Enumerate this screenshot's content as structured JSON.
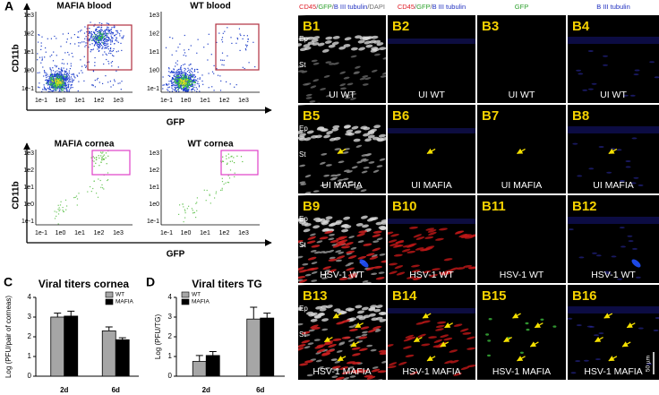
{
  "figure": {
    "panel_a": "A",
    "panel_c": "C",
    "panel_d": "D",
    "flow": {
      "x_label": "GFP",
      "y_label": "CD11b",
      "ticks": [
        "1e-1",
        "1e0",
        "1e1",
        "1e2",
        "1e3"
      ],
      "plots": [
        "MAFIA blood",
        "WT blood",
        "MAFIA cornea",
        "WT cornea"
      ]
    },
    "micro": {
      "headers": [
        [
          {
            "text": "CD45",
            "color": "#e0202a"
          },
          {
            "text": "/",
            "color": "#606060"
          },
          {
            "text": "GFP",
            "color": "#2ca02c"
          },
          {
            "text": "/",
            "color": "#606060"
          },
          {
            "text": "B III tubulin",
            "color": "#2030c0"
          },
          {
            "text": "/",
            "color": "#606060"
          },
          {
            "text": "DAPI",
            "color": "#707070"
          }
        ],
        [
          {
            "text": "CD45",
            "color": "#e0202a"
          },
          {
            "text": "/",
            "color": "#606060"
          },
          {
            "text": "GFP",
            "color": "#2ca02c"
          },
          {
            "text": "/",
            "color": "#606060"
          },
          {
            "text": "B III tubulin",
            "color": "#2030c0"
          }
        ],
        [
          {
            "text": "GFP",
            "color": "#2ca02c"
          }
        ],
        [
          {
            "text": "B III tubulin",
            "color": "#2030c0"
          }
        ]
      ],
      "ep": "Ep",
      "st": "St",
      "panels": [
        {
          "label": "B1",
          "caption": "UI WT"
        },
        {
          "label": "B2",
          "caption": "UI WT"
        },
        {
          "label": "B3",
          "caption": "UI WT"
        },
        {
          "label": "B4",
          "caption": "UI WT"
        },
        {
          "label": "B5",
          "caption": "UI MAFIA"
        },
        {
          "label": "B6",
          "caption": "UI MAFIA"
        },
        {
          "label": "B7",
          "caption": "UI MAFIA"
        },
        {
          "label": "B8",
          "caption": "UI MAFIA"
        },
        {
          "label": "B9",
          "caption": "HSV-1 WT"
        },
        {
          "label": "B10",
          "caption": "HSV-1 WT"
        },
        {
          "label": "B11",
          "caption": "HSV-1 WT"
        },
        {
          "label": "B12",
          "caption": "HSV-1 WT"
        },
        {
          "label": "B13",
          "caption": "HSV-1 MAFIA"
        },
        {
          "label": "B14",
          "caption": "HSV-1 MAFIA"
        },
        {
          "label": "B15",
          "caption": "HSV-1 MAFIA"
        },
        {
          "label": "B16",
          "caption": "HSV-1 MAFIA"
        }
      ],
      "scale_bar": "50 µm"
    }
  },
  "chart_data": [
    {
      "type": "bar",
      "title": "Viral titers cornea",
      "y_label": "Log (PFU/pair of corneas)",
      "categories": [
        "2d",
        "6d"
      ],
      "series": [
        {
          "name": "WT",
          "color": "#a6a6a6",
          "values": [
            3.0,
            2.3
          ],
          "errors": [
            0.2,
            0.2
          ]
        },
        {
          "name": "MAFIA",
          "color": "#000000",
          "values": [
            3.05,
            1.85
          ],
          "errors": [
            0.25,
            0.1
          ]
        }
      ],
      "ylim": [
        0,
        4
      ],
      "yticks": [
        0,
        1,
        2,
        3,
        4
      ],
      "legend": "top-right",
      "grid": false
    },
    {
      "type": "bar",
      "title": "Viral titers TG",
      "y_label": "Log (PFU/TG)",
      "categories": [
        "2d",
        "6d"
      ],
      "series": [
        {
          "name": "WT",
          "color": "#a6a6a6",
          "values": [
            0.75,
            2.9
          ],
          "errors": [
            0.3,
            0.6
          ]
        },
        {
          "name": "MAFIA",
          "color": "#000000",
          "values": [
            1.05,
            2.95
          ],
          "errors": [
            0.2,
            0.25
          ]
        }
      ],
      "ylim": [
        0,
        4
      ],
      "yticks": [
        0,
        1,
        2,
        3,
        4
      ],
      "legend": "top-left",
      "grid": false
    }
  ]
}
